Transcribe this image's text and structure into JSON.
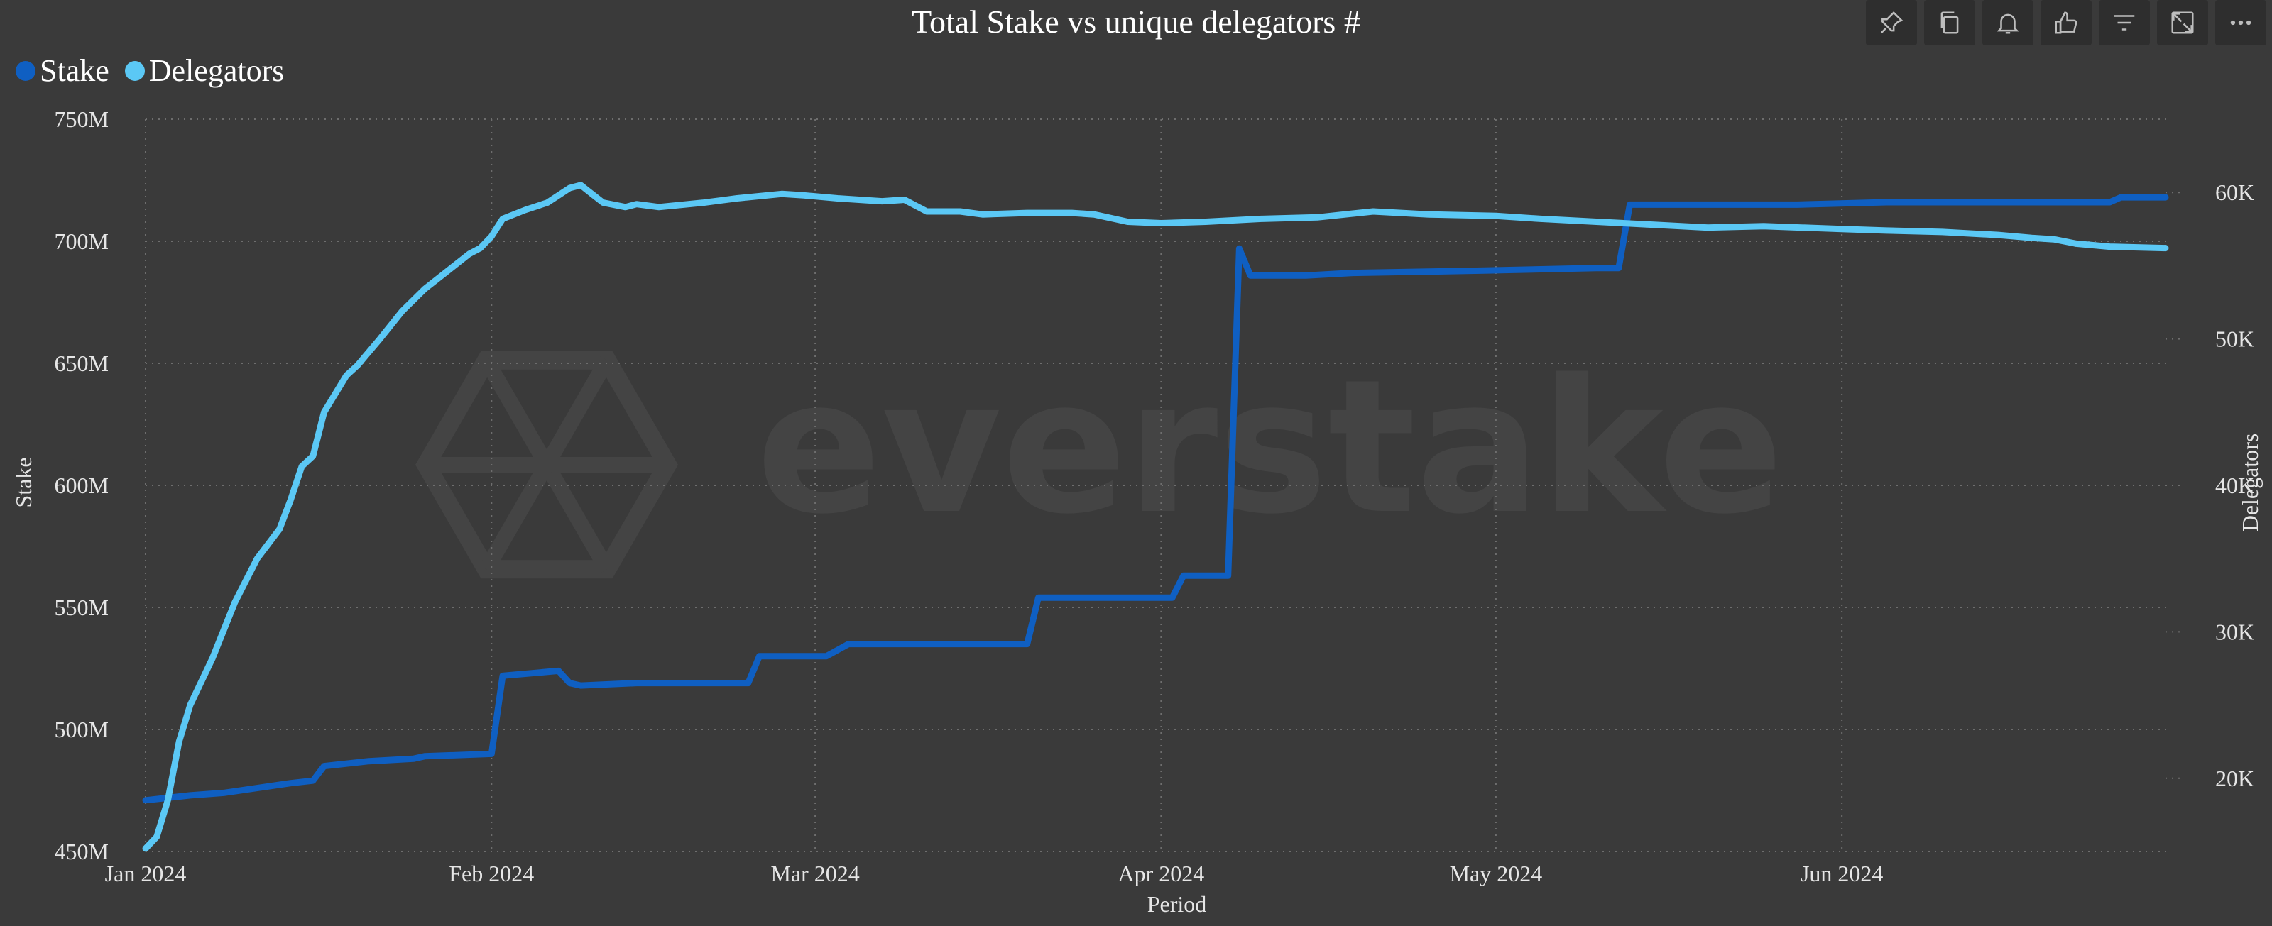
{
  "toolbar": {
    "icons": [
      "pin-icon",
      "copy-icon",
      "bell-icon",
      "thumbs-up-icon",
      "filter-icon",
      "expand-icon",
      "more-icon"
    ]
  },
  "chart_data": {
    "type": "line",
    "title": "Total Stake vs unique delegators #",
    "xlabel": "Period",
    "ylabel": "Stake",
    "y2label": "Delegators",
    "x_ticks": [
      "Jan 2024",
      "Feb 2024",
      "Mar 2024",
      "Apr 2024",
      "May 2024",
      "Jun 2024"
    ],
    "y_ticks": [
      "450M",
      "500M",
      "550M",
      "600M",
      "650M",
      "700M",
      "750M"
    ],
    "y2_ticks": [
      "20K",
      "30K",
      "40K",
      "50K",
      "60K"
    ],
    "ylim": [
      450,
      750
    ],
    "y2lim": [
      15000,
      65000
    ],
    "xlim": [
      "2024-01-01",
      "2024-06-30"
    ],
    "grid": true,
    "legend_position": "top-left",
    "watermark": "everstake",
    "colors": {
      "background": "#3a3a3a",
      "grid": "#6e6e6e",
      "axis_text": "#e6e6e6",
      "watermark": "#444444"
    },
    "series": [
      {
        "name": "Stake",
        "axis": "left",
        "unit": "M",
        "color": "#0f5fc2",
        "points": [
          [
            "2024-01-01",
            471
          ],
          [
            "2024-01-05",
            473
          ],
          [
            "2024-01-08",
            474
          ],
          [
            "2024-01-11",
            476
          ],
          [
            "2024-01-14",
            478
          ],
          [
            "2024-01-16",
            479
          ],
          [
            "2024-01-17",
            485
          ],
          [
            "2024-01-21",
            487
          ],
          [
            "2024-01-25",
            488
          ],
          [
            "2024-01-26",
            489
          ],
          [
            "2024-02-01",
            490
          ],
          [
            "2024-02-02",
            522
          ],
          [
            "2024-02-07",
            524
          ],
          [
            "2024-02-08",
            519
          ],
          [
            "2024-02-09",
            518
          ],
          [
            "2024-02-14",
            519
          ],
          [
            "2024-02-24",
            519
          ],
          [
            "2024-02-25",
            530
          ],
          [
            "2024-03-01",
            530
          ],
          [
            "2024-03-02",
            530
          ],
          [
            "2024-03-04",
            535
          ],
          [
            "2024-03-15",
            535
          ],
          [
            "2024-03-20",
            535
          ],
          [
            "2024-03-21",
            554
          ],
          [
            "2024-03-31",
            554
          ],
          [
            "2024-04-02",
            554
          ],
          [
            "2024-04-03",
            563
          ],
          [
            "2024-04-07",
            563
          ],
          [
            "2024-04-08",
            697
          ],
          [
            "2024-04-09",
            686
          ],
          [
            "2024-04-14",
            686
          ],
          [
            "2024-04-18",
            687
          ],
          [
            "2024-04-30",
            688
          ],
          [
            "2024-05-10",
            689
          ],
          [
            "2024-05-12",
            689
          ],
          [
            "2024-05-13",
            715
          ],
          [
            "2024-05-20",
            715
          ],
          [
            "2024-05-28",
            715
          ],
          [
            "2024-06-05",
            716
          ],
          [
            "2024-06-15",
            716
          ],
          [
            "2024-06-25",
            716
          ],
          [
            "2024-06-26",
            718
          ],
          [
            "2024-06-30",
            718
          ]
        ]
      },
      {
        "name": "Delegators",
        "axis": "right",
        "unit": "K",
        "color": "#5bc8f5",
        "points": [
          [
            "2024-01-01",
            15200
          ],
          [
            "2024-01-02",
            16000
          ],
          [
            "2024-01-03",
            18500
          ],
          [
            "2024-01-04",
            22500
          ],
          [
            "2024-01-05",
            25000
          ],
          [
            "2024-01-07",
            28200
          ],
          [
            "2024-01-09",
            32000
          ],
          [
            "2024-01-11",
            35000
          ],
          [
            "2024-01-13",
            37000
          ],
          [
            "2024-01-14",
            39000
          ],
          [
            "2024-01-15",
            41300
          ],
          [
            "2024-01-16",
            42000
          ],
          [
            "2024-01-17",
            45000
          ],
          [
            "2024-01-19",
            47500
          ],
          [
            "2024-01-20",
            48200
          ],
          [
            "2024-01-22",
            50000
          ],
          [
            "2024-01-24",
            51900
          ],
          [
            "2024-01-26",
            53400
          ],
          [
            "2024-01-28",
            54600
          ],
          [
            "2024-01-30",
            55800
          ],
          [
            "2024-01-31",
            56200
          ],
          [
            "2024-02-01",
            57000
          ],
          [
            "2024-02-02",
            58200
          ],
          [
            "2024-02-04",
            58800
          ],
          [
            "2024-02-06",
            59300
          ],
          [
            "2024-02-07",
            59800
          ],
          [
            "2024-02-08",
            60300
          ],
          [
            "2024-02-09",
            60500
          ],
          [
            "2024-02-10",
            59900
          ],
          [
            "2024-02-11",
            59300
          ],
          [
            "2024-02-13",
            59000
          ],
          [
            "2024-02-14",
            59200
          ],
          [
            "2024-02-16",
            59000
          ],
          [
            "2024-02-20",
            59300
          ],
          [
            "2024-02-23",
            59600
          ],
          [
            "2024-02-27",
            59900
          ],
          [
            "2024-02-29",
            59800
          ],
          [
            "2024-03-03",
            59600
          ],
          [
            "2024-03-07",
            59400
          ],
          [
            "2024-03-09",
            59500
          ],
          [
            "2024-03-11",
            58700
          ],
          [
            "2024-03-14",
            58700
          ],
          [
            "2024-03-16",
            58500
          ],
          [
            "2024-03-20",
            58600
          ],
          [
            "2024-03-24",
            58600
          ],
          [
            "2024-03-26",
            58500
          ],
          [
            "2024-03-29",
            58000
          ],
          [
            "2024-04-01",
            57900
          ],
          [
            "2024-04-05",
            58000
          ],
          [
            "2024-04-10",
            58200
          ],
          [
            "2024-04-15",
            58300
          ],
          [
            "2024-04-20",
            58700
          ],
          [
            "2024-04-25",
            58500
          ],
          [
            "2024-05-01",
            58400
          ],
          [
            "2024-05-05",
            58200
          ],
          [
            "2024-05-10",
            58000
          ],
          [
            "2024-05-15",
            57800
          ],
          [
            "2024-05-20",
            57600
          ],
          [
            "2024-05-25",
            57700
          ],
          [
            "2024-06-01",
            57500
          ],
          [
            "2024-06-05",
            57400
          ],
          [
            "2024-06-10",
            57300
          ],
          [
            "2024-06-15",
            57100
          ],
          [
            "2024-06-18",
            56900
          ],
          [
            "2024-06-20",
            56800
          ],
          [
            "2024-06-22",
            56500
          ],
          [
            "2024-06-25",
            56300
          ],
          [
            "2024-06-30",
            56200
          ]
        ]
      }
    ]
  }
}
